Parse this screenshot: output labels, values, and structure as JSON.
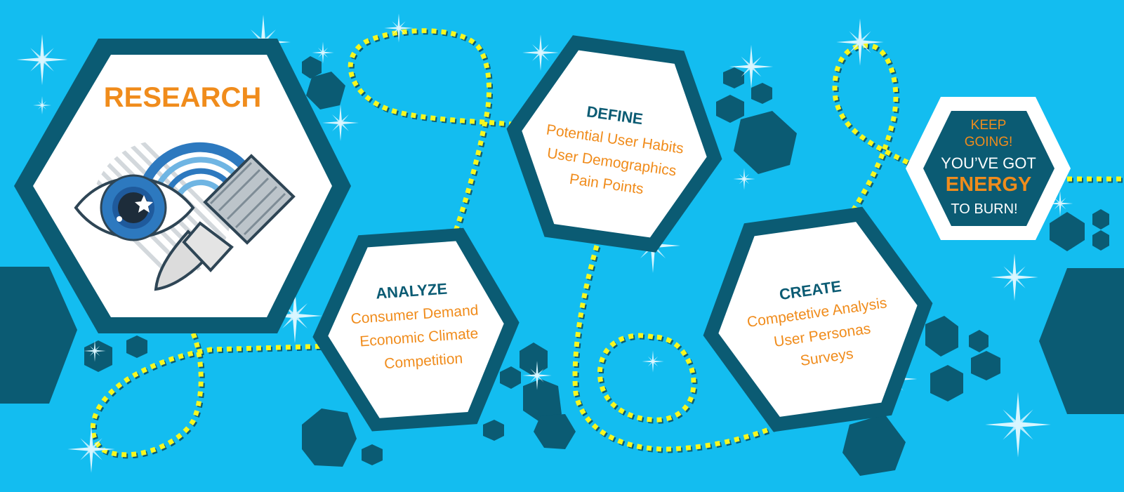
{
  "colors": {
    "background": "#13bdf0",
    "hex_border": "#0b5b73",
    "hex_fill": "#ffffff",
    "dotted_path": "#f7f71e",
    "accent_text": "#f08c1c",
    "heading_text": "#0b5b73"
  },
  "research": {
    "title": "RESEARCH",
    "icons": [
      "eye-icon",
      "paint-brush-icon",
      "rainbow-icon"
    ]
  },
  "define": {
    "title": "DEFINE",
    "items": [
      "Potential User Habits",
      "User Demographics",
      "Pain Points"
    ]
  },
  "analyze": {
    "title": "ANALYZE",
    "items": [
      "Consumer Demand",
      "Economic Climate",
      "Competition"
    ]
  },
  "create": {
    "title": "CREATE",
    "items": [
      "Competetive Analysis",
      "User Personas",
      "Surveys"
    ]
  },
  "keep_going": {
    "line1": "KEEP",
    "line2": "GOING!",
    "line3": "YOU’VE GOT",
    "line4": "ENERGY",
    "line5": "TO BURN!"
  }
}
